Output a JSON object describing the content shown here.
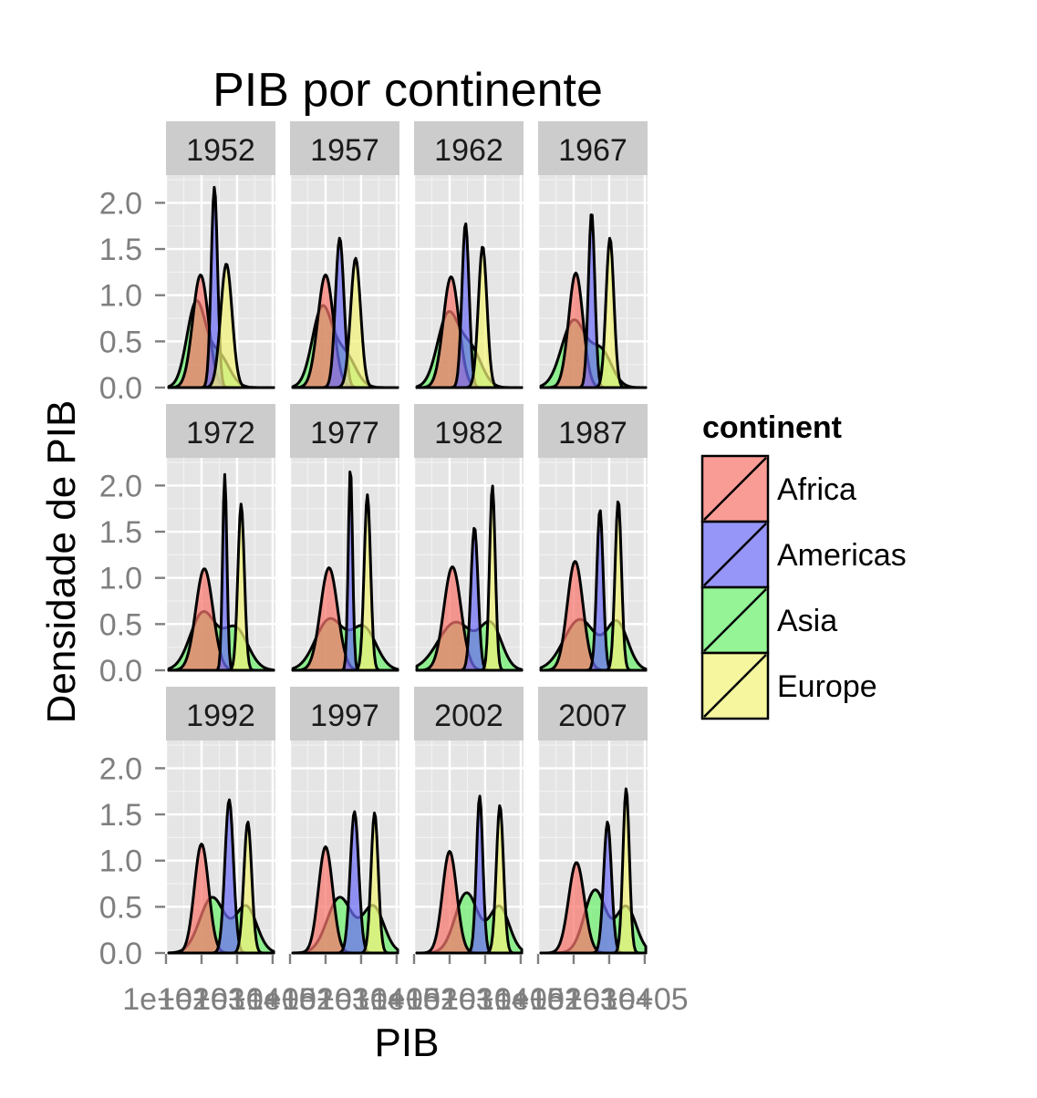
{
  "chart_data": {
    "type": "area",
    "title": "PIB por continente",
    "xlabel": "PIB",
    "ylabel": "Densidade de PIB",
    "x_scale": "log10",
    "xlim": [
      100,
      120000
    ],
    "ylim": [
      0,
      2.3
    ],
    "y_ticks": [
      0.0,
      0.5,
      1.0,
      1.5,
      2.0
    ],
    "y_tick_labels": [
      "0.0",
      "0.5",
      "1.0",
      "1.5",
      "2.0"
    ],
    "x_ticks": [
      100,
      1000,
      10000,
      100000
    ],
    "x_tick_labels": [
      "1e+02",
      "1e+03",
      "1e+04",
      "1e+05"
    ],
    "grid": true,
    "legend": {
      "title": "continent",
      "position": "right",
      "entries": [
        "Africa",
        "Americas",
        "Asia",
        "Europe"
      ]
    },
    "colors": {
      "Africa": "#F8766D",
      "Americas": "#6E6EF5",
      "Asia": "#6CF06C",
      "Europe": "#F2F27A",
      "panel_bg": "#E5E5E5",
      "strip_bg": "#CCCCCC"
    },
    "facets": [
      {
        "year": "1952",
        "peaks": {
          "Africa": [
            [
              940,
              1.22,
              0.22
            ]
          ],
          "Americas": [
            [
              2300,
              2.17,
              0.09
            ]
          ],
          "Asia": [
            [
              700,
              0.9,
              0.26
            ],
            [
              3000,
              0.35,
              0.3
            ]
          ],
          "Europe": [
            [
              5000,
              1.34,
              0.16
            ]
          ]
        }
      },
      {
        "year": "1957",
        "peaks": {
          "Africa": [
            [
              1000,
              1.22,
              0.22
            ]
          ],
          "Americas": [
            [
              2500,
              1.62,
              0.12
            ]
          ],
          "Asia": [
            [
              800,
              0.85,
              0.28
            ],
            [
              3500,
              0.35,
              0.3
            ]
          ],
          "Europe": [
            [
              7000,
              1.4,
              0.14
            ]
          ]
        }
      },
      {
        "year": "1962",
        "peaks": {
          "Africa": [
            [
              1100,
              1.2,
              0.22
            ]
          ],
          "Americas": [
            [
              2800,
              1.78,
              0.1
            ]
          ],
          "Asia": [
            [
              900,
              0.78,
              0.3
            ],
            [
              4000,
              0.4,
              0.3
            ]
          ],
          "Europe": [
            [
              8500,
              1.53,
              0.12
            ]
          ]
        }
      },
      {
        "year": "1967",
        "peaks": {
          "Africa": [
            [
              1150,
              1.24,
              0.2
            ]
          ],
          "Americas": [
            [
              3200,
              1.9,
              0.09
            ]
          ],
          "Asia": [
            [
              1000,
              0.72,
              0.34
            ],
            [
              6000,
              0.38,
              0.3
            ]
          ],
          "Europe": [
            [
              10500,
              1.62,
              0.11
            ]
          ]
        }
      },
      {
        "year": "1972",
        "peaks": {
          "Africa": [
            [
              1200,
              1.1,
              0.24
            ]
          ],
          "Americas": [
            [
              4500,
              2.12,
              0.06
            ]
          ],
          "Asia": [
            [
              1100,
              0.62,
              0.36
            ],
            [
              9000,
              0.45,
              0.35
            ]
          ],
          "Europe": [
            [
              13000,
              1.8,
              0.09
            ]
          ]
        }
      },
      {
        "year": "1977",
        "peaks": {
          "Africa": [
            [
              1250,
              1.11,
              0.24
            ]
          ],
          "Americas": [
            [
              5000,
              2.2,
              0.06
            ]
          ],
          "Asia": [
            [
              1300,
              0.55,
              0.4
            ],
            [
              12000,
              0.45,
              0.35
            ]
          ],
          "Europe": [
            [
              15000,
              1.9,
              0.09
            ]
          ]
        }
      },
      {
        "year": "1982",
        "peaks": {
          "Africa": [
            [
              1200,
              1.12,
              0.24
            ]
          ],
          "Americas": [
            [
              5000,
              1.55,
              0.1
            ]
          ],
          "Asia": [
            [
              1500,
              0.52,
              0.5
            ],
            [
              15000,
              0.45,
              0.3
            ]
          ],
          "Europe": [
            [
              16000,
              2.0,
              0.08
            ]
          ]
        }
      },
      {
        "year": "1987",
        "peaks": {
          "Africa": [
            [
              1100,
              1.18,
              0.22
            ]
          ],
          "Americas": [
            [
              5500,
              1.74,
              0.09
            ]
          ],
          "Asia": [
            [
              1500,
              0.55,
              0.45
            ],
            [
              17000,
              0.5,
              0.3
            ]
          ],
          "Europe": [
            [
              18000,
              1.84,
              0.09
            ]
          ]
        }
      },
      {
        "year": "1992",
        "peaks": {
          "Africa": [
            [
              1000,
              1.18,
              0.2
            ]
          ],
          "Americas": [
            [
              6000,
              1.66,
              0.12
            ]
          ],
          "Asia": [
            [
              2000,
              0.6,
              0.35
            ],
            [
              18000,
              0.5,
              0.3
            ]
          ],
          "Europe": [
            [
              20000,
              1.42,
              0.11
            ]
          ]
        }
      },
      {
        "year": "1997",
        "peaks": {
          "Africa": [
            [
              1000,
              1.15,
              0.2
            ]
          ],
          "Americas": [
            [
              6500,
              1.53,
              0.12
            ]
          ],
          "Asia": [
            [
              2500,
              0.6,
              0.35
            ],
            [
              22000,
              0.5,
              0.3
            ]
          ],
          "Europe": [
            [
              24000,
              1.52,
              0.1
            ]
          ]
        }
      },
      {
        "year": "2002",
        "peaks": {
          "Africa": [
            [
              1000,
              1.1,
              0.2
            ]
          ],
          "Americas": [
            [
              7000,
              1.7,
              0.09
            ]
          ],
          "Asia": [
            [
              3000,
              0.65,
              0.32
            ],
            [
              25000,
              0.5,
              0.28
            ]
          ],
          "Europe": [
            [
              26000,
              1.6,
              0.1
            ]
          ]
        }
      },
      {
        "year": "2007",
        "peaks": {
          "Africa": [
            [
              1200,
              0.98,
              0.22
            ]
          ],
          "Americas": [
            [
              9000,
              1.42,
              0.11
            ]
          ],
          "Asia": [
            [
              4000,
              0.68,
              0.3
            ],
            [
              30000,
              0.5,
              0.28
            ]
          ],
          "Europe": [
            [
              30000,
              1.78,
              0.09
            ]
          ]
        }
      }
    ]
  }
}
